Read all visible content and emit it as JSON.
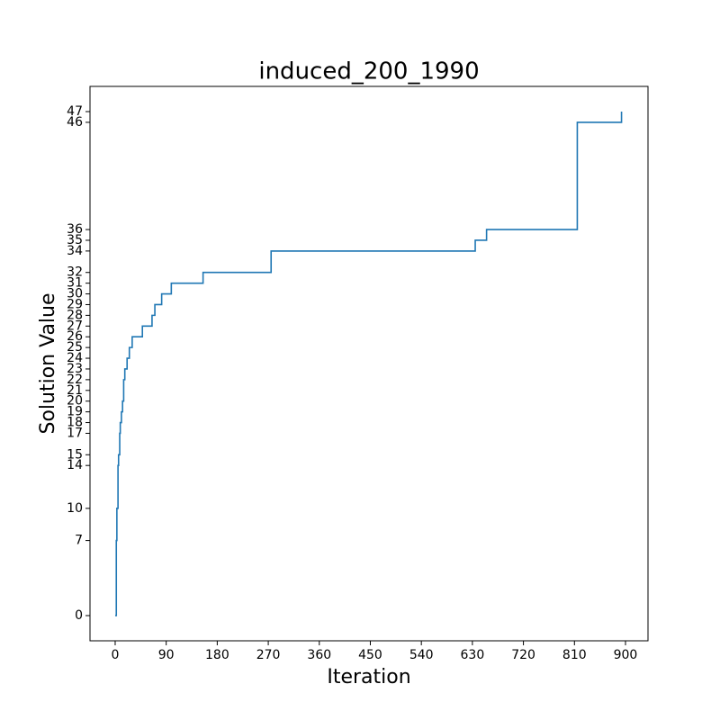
{
  "chart_data": {
    "type": "line",
    "drawstyle": "steps-post",
    "title": "induced_200_1990",
    "xlabel": "Iteration",
    "ylabel": "Solution Value",
    "x": [
      0,
      2,
      3,
      5,
      6,
      8,
      9,
      11,
      13,
      15,
      17,
      21,
      25,
      30,
      48,
      65,
      70,
      82,
      99,
      155,
      275,
      635,
      655,
      815,
      893
    ],
    "series": [
      {
        "color": "#1f77b4",
        "values": [
          0,
          7,
          10,
          14,
          15,
          17,
          18,
          19,
          20,
          22,
          23,
          24,
          25,
          26,
          27,
          28,
          29,
          30,
          31,
          32,
          34,
          35,
          36,
          46,
          47
        ]
      }
    ],
    "xlim": [
      -44.4,
      939.7
    ],
    "xticks": [
      0,
      90,
      180,
      270,
      360,
      450,
      540,
      630,
      720,
      810,
      900
    ],
    "ylim": [
      -2.35,
      49.35
    ],
    "yticks": [
      0,
      7,
      10,
      14,
      15,
      17,
      18,
      19,
      20,
      21,
      22,
      23,
      24,
      25,
      26,
      27,
      28,
      29,
      30,
      31,
      32,
      34,
      35,
      36,
      46,
      47
    ],
    "grid": false
  }
}
